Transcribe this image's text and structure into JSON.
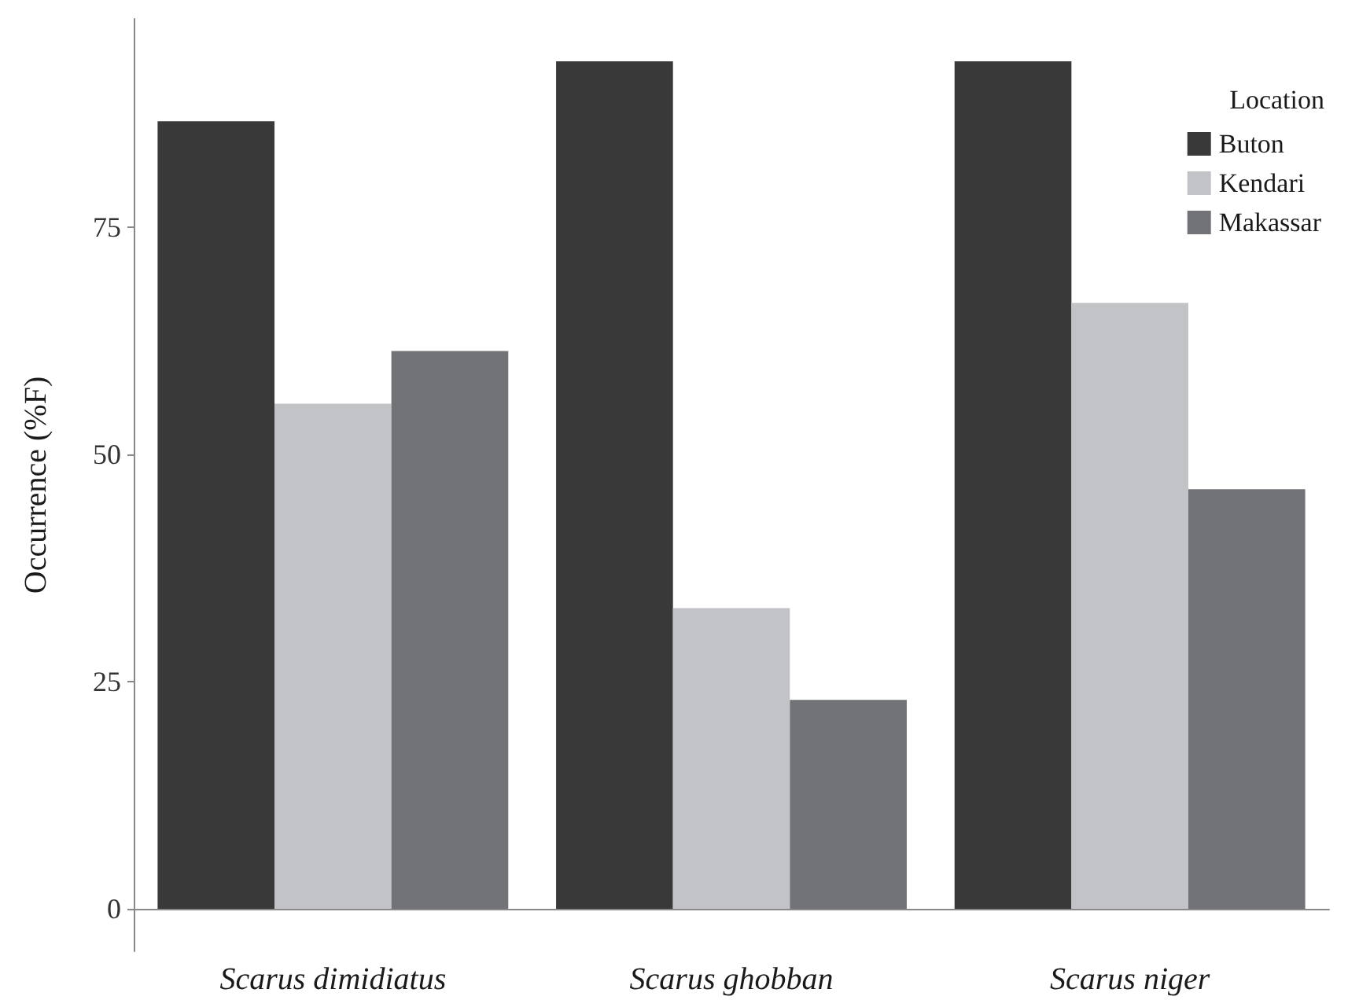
{
  "chart_data": {
    "type": "bar",
    "ylabel": "Occurrence (%F)",
    "legend_title": "Location",
    "categories": [
      "Scarus dimidiatus",
      "Scarus ghobban",
      "Scarus niger"
    ],
    "series": [
      {
        "name": "Buton",
        "color": "#393939",
        "values": [
          86.7,
          93.3,
          93.3
        ]
      },
      {
        "name": "Kendari",
        "color": "#c2c3c6",
        "values": [
          55.6,
          33.1,
          66.7
        ]
      },
      {
        "name": "Makassar",
        "color": "#727377",
        "values": [
          61.4,
          23.0,
          46.2
        ]
      }
    ],
    "ylim": [
      -4.67,
      97.97
    ],
    "yticks": [
      0,
      25,
      50,
      75
    ],
    "grid": false,
    "legend": "top right"
  }
}
